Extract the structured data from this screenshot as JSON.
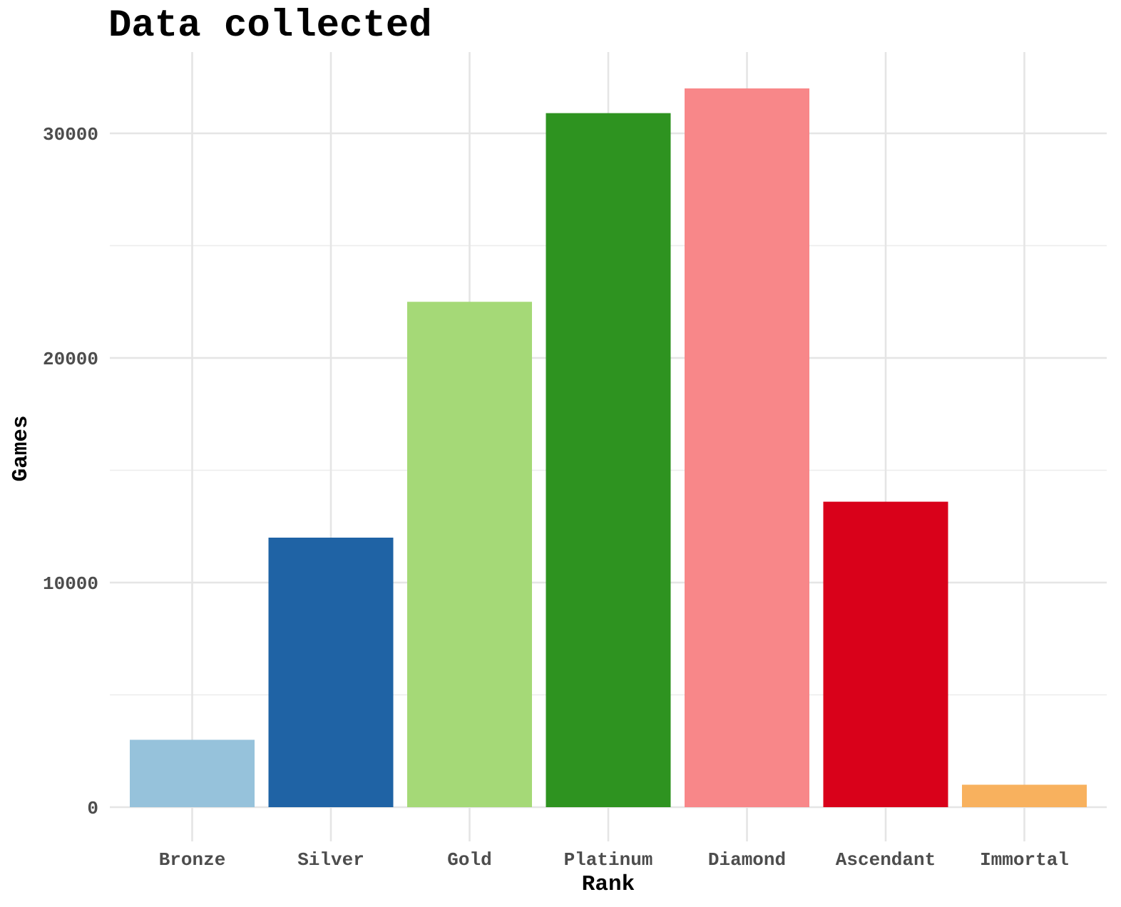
{
  "chart_data": {
    "type": "bar",
    "title": "Data collected",
    "xlabel": "Rank",
    "ylabel": "Games",
    "categories": [
      "Bronze",
      "Silver",
      "Gold",
      "Platinum",
      "Diamond",
      "Ascendant",
      "Immortal"
    ],
    "values": [
      3000,
      12000,
      22500,
      30900,
      32000,
      13600,
      1000
    ],
    "colors": [
      "#96c2db",
      "#1f63a5",
      "#a5d977",
      "#2e9320",
      "#f88789",
      "#d9011a",
      "#f8b15e"
    ],
    "ylim": [
      0,
      33500
    ],
    "yticks": [
      {
        "value": 0,
        "label": "0"
      },
      {
        "value": 10000,
        "label": "10000"
      },
      {
        "value": 20000,
        "label": "20000"
      },
      {
        "value": 30000,
        "label": "30000"
      }
    ],
    "grid": true,
    "legend": "none"
  }
}
